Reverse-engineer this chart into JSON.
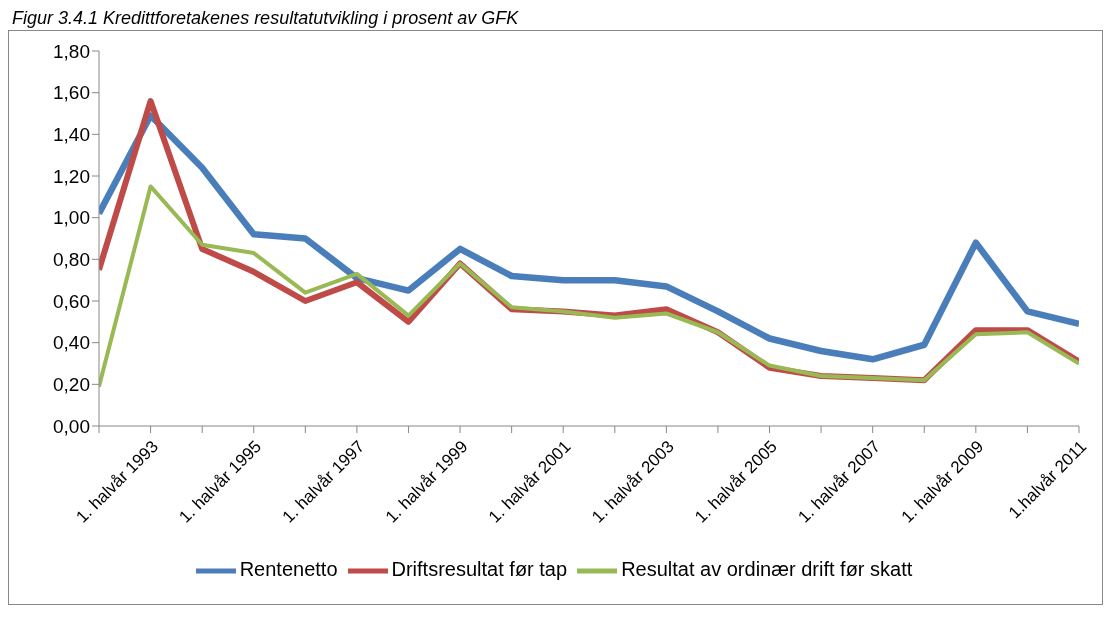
{
  "chart_data": {
    "type": "line",
    "title": "Figur 3.4.1        Kredittforetakenes resultatutvikling i prosent av GFK",
    "categories": [
      null,
      "1. halvår 1993",
      null,
      "1. halvår 1995",
      null,
      "1. halvår 1997",
      null,
      "1. halvår 1999",
      null,
      "1. halvår 2001",
      null,
      "1. halvår 2003",
      null,
      "1. halvår 2005",
      null,
      "1. halvår 2007",
      null,
      "1. halvår 2009",
      null,
      "1.halvår 2011"
    ],
    "series": [
      {
        "name": "Rentenetto",
        "color": "#4a7ebb",
        "values": [
          1.02,
          1.49,
          1.24,
          0.92,
          0.9,
          0.71,
          0.65,
          0.85,
          0.72,
          0.7,
          0.7,
          0.67,
          0.55,
          0.42,
          0.36,
          0.32,
          0.39,
          0.88,
          0.55,
          0.49
        ]
      },
      {
        "name": "Driftsresultat før tap",
        "color": "#be4b48",
        "values": [
          0.75,
          1.56,
          0.85,
          0.74,
          0.6,
          0.69,
          0.5,
          0.78,
          0.56,
          0.55,
          0.53,
          0.56,
          0.45,
          0.28,
          0.24,
          0.23,
          0.22,
          0.46,
          0.46,
          0.31
        ]
      },
      {
        "name": "Resultat av ordinær drift før skatt",
        "color": "#98b954",
        "values": [
          0.19,
          1.15,
          0.87,
          0.83,
          0.64,
          0.73,
          0.53,
          0.78,
          0.57,
          0.55,
          0.52,
          0.54,
          0.45,
          0.29,
          0.24,
          0.23,
          0.22,
          0.44,
          0.45,
          0.3
        ]
      }
    ],
    "ylim": [
      0,
      1.8
    ],
    "yticks": [
      {
        "value": 0,
        "label": "0,00"
      },
      {
        "value": 0.2,
        "label": "0,20"
      },
      {
        "value": 0.4,
        "label": "0,40"
      },
      {
        "value": 0.6,
        "label": "0,60"
      },
      {
        "value": 0.8,
        "label": "0,80"
      },
      {
        "value": 1,
        "label": "1,00"
      },
      {
        "value": 1.2,
        "label": "1,20"
      },
      {
        "value": 1.4,
        "label": "1,40"
      },
      {
        "value": 1.6,
        "label": "1,60"
      },
      {
        "value": 1.8,
        "label": "1,80"
      }
    ],
    "grid": false,
    "legend": "bottom",
    "marker": "none",
    "line_style": "solid"
  }
}
